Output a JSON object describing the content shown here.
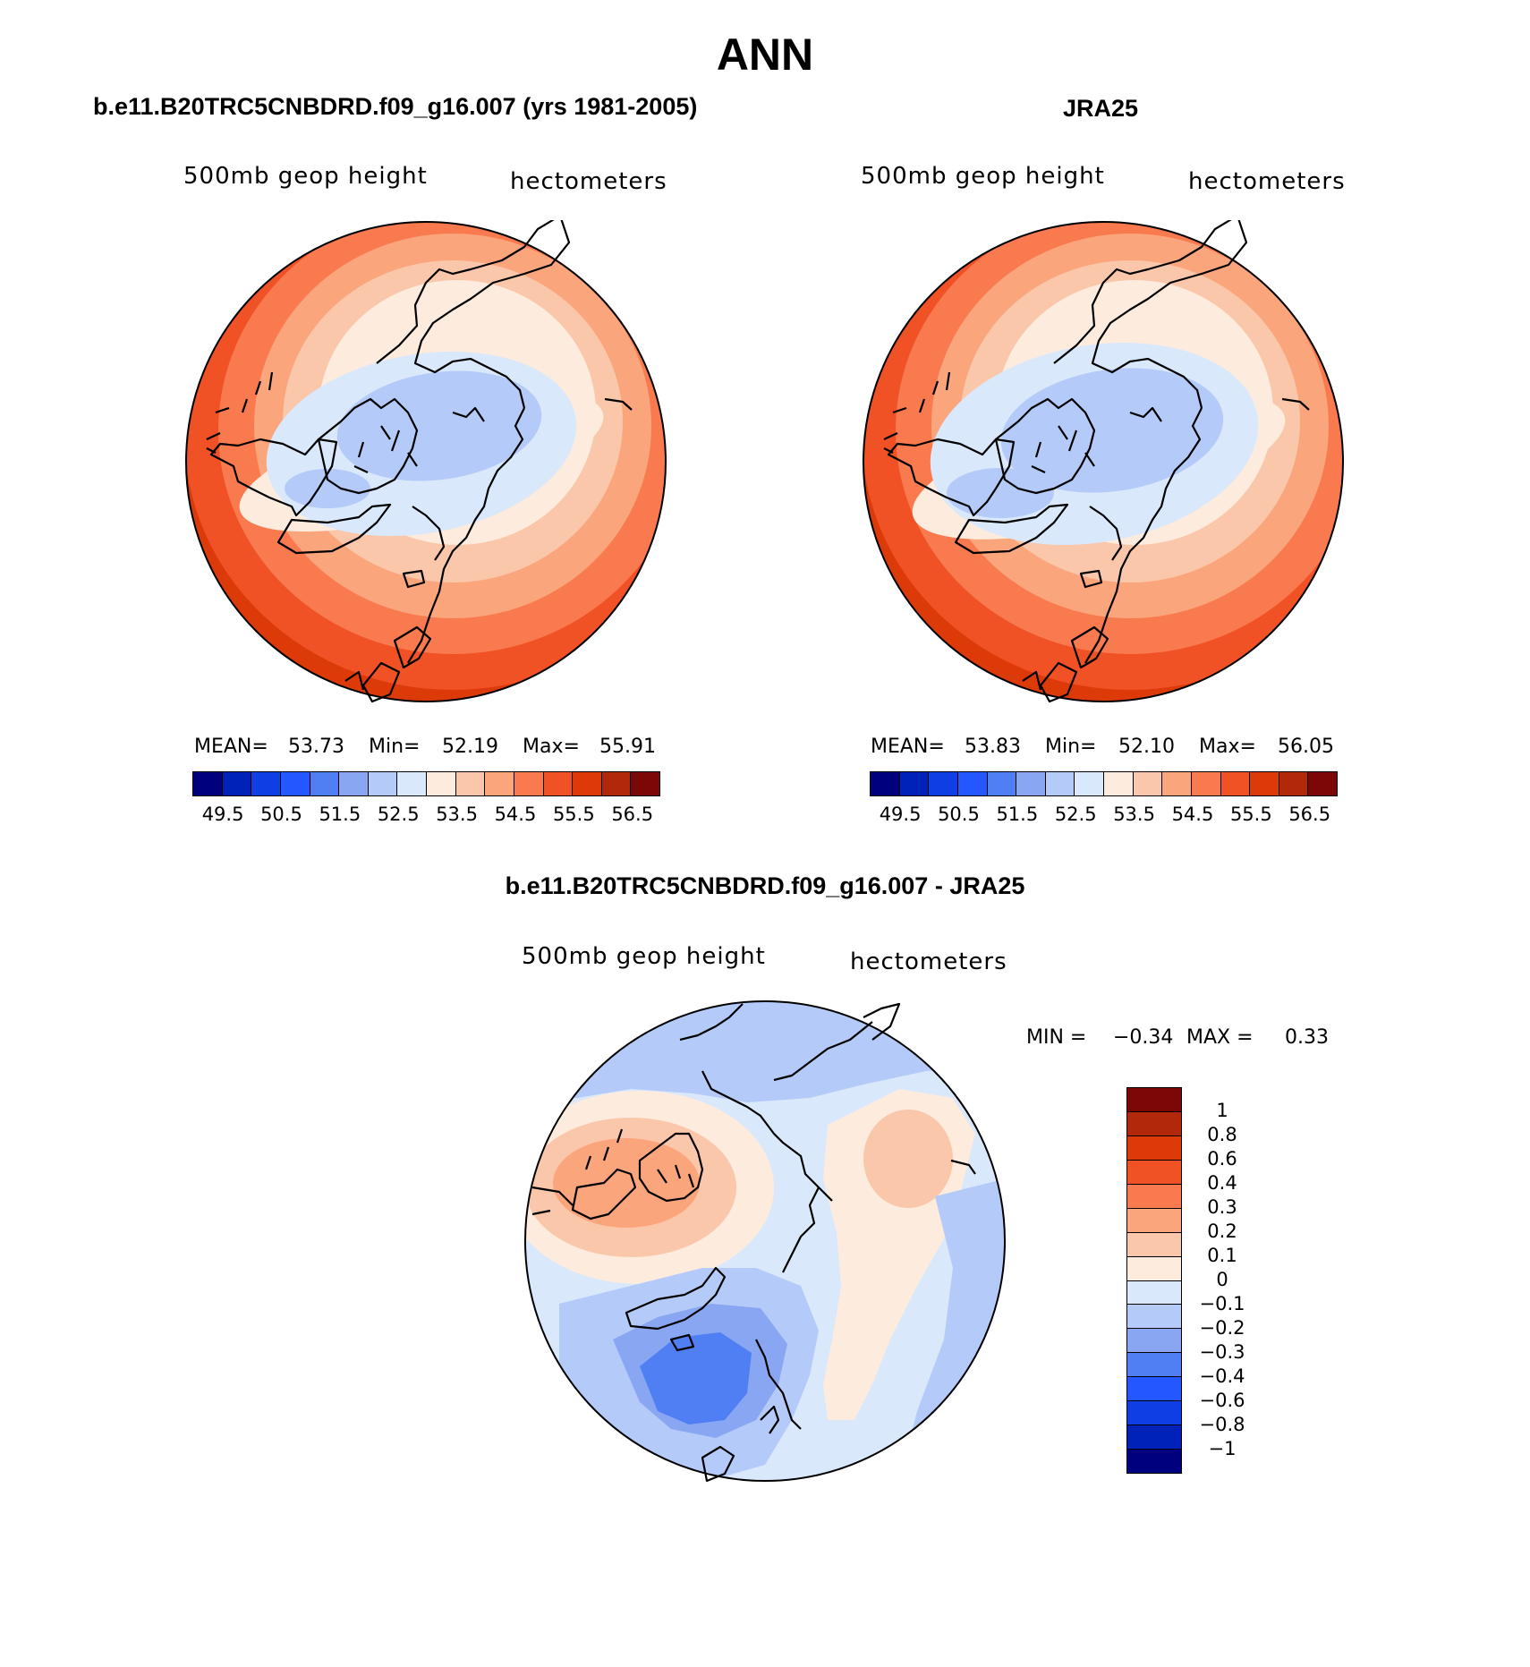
{
  "title": "ANN",
  "colors": {
    "model_palette": [
      "#00007f",
      "#0022b8",
      "#0e3ee4",
      "#2457ff",
      "#4f7ff3",
      "#88a6f2",
      "#b4caf8",
      "#d9e8fb",
      "#fdebde",
      "#fbc7ab",
      "#fba57d",
      "#f97a4e",
      "#f05125",
      "#dd3a0a",
      "#b2280a",
      "#7c0707"
    ],
    "diff_palette": [
      "#7c0707",
      "#b2280a",
      "#dd3a0a",
      "#f05125",
      "#f97a4e",
      "#fba57d",
      "#fbc7ab",
      "#fdebde",
      "#d9e8fb",
      "#b4caf8",
      "#88a6f2",
      "#4f7ff3",
      "#2457ff",
      "#0e3ee4",
      "#0022b8",
      "#00007f"
    ],
    "coastline": "#000000"
  },
  "panels": [
    {
      "title": "b.e11.B20TRC5CNBDRD.f09_g16.007 (yrs 1981-2005)",
      "variable": "500mb geop height",
      "units": "hectometers",
      "mean_label": "MEAN=",
      "mean_value": "53.73",
      "min_label": "Min=",
      "min_value": "52.19",
      "max_label": "Max=",
      "max_value": "55.91",
      "ticks": [
        "49.5",
        "50.5",
        "51.5",
        "52.5",
        "53.5",
        "54.5",
        "55.5",
        "56.5"
      ]
    },
    {
      "title": "JRA25",
      "variable": "500mb geop height",
      "units": "hectometers",
      "mean_label": "MEAN=",
      "mean_value": "53.83",
      "min_label": "Min=",
      "min_value": "52.10",
      "max_label": "Max=",
      "max_value": "56.05",
      "ticks": [
        "49.5",
        "50.5",
        "51.5",
        "52.5",
        "53.5",
        "54.5",
        "55.5",
        "56.5"
      ]
    },
    {
      "title": "b.e11.B20TRC5CNBDRD.f09_g16.007 - JRA25",
      "variable": "500mb geop height",
      "units": "hectometers",
      "min_label": "MIN =",
      "min_value": "−0.34",
      "max_label": "MAX =",
      "max_value": "0.33",
      "ticks": [
        "1",
        "0.8",
        "0.6",
        "0.4",
        "0.3",
        "0.2",
        "0.1",
        "0",
        "−0.1",
        "−0.2",
        "−0.3",
        "−0.4",
        "−0.6",
        "−0.8",
        "−1"
      ]
    }
  ]
}
